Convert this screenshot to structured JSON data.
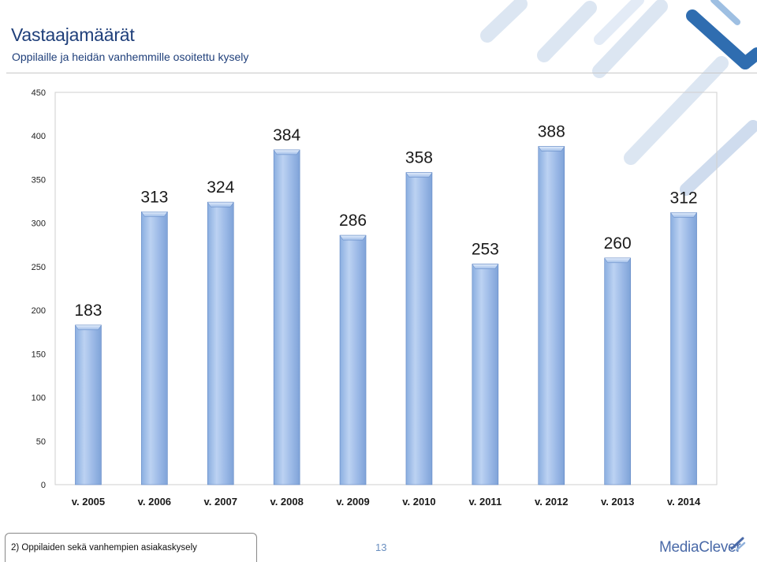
{
  "header": {
    "title": "Vastaajamäärät",
    "subtitle": "Oppilaille ja heidän vanhemmille osoitettu kysely"
  },
  "chart_data": {
    "type": "bar",
    "categories": [
      "v. 2005",
      "v. 2006",
      "v. 2007",
      "v. 2008",
      "v. 2009",
      "v. 2010",
      "v. 2011",
      "v. 2012",
      "v. 2013",
      "v. 2014"
    ],
    "values": [
      183,
      313,
      324,
      384,
      286,
      358,
      253,
      388,
      260,
      312
    ],
    "y_ticks": [
      0,
      50,
      100,
      150,
      200,
      250,
      300,
      350,
      400,
      450
    ],
    "ylim": [
      0,
      450
    ],
    "grid": false,
    "legend": "none",
    "colors": {
      "bar": "#9ab8e6",
      "bar_edge": "#5f86c4",
      "label": "#1a1a1a"
    }
  },
  "footer": {
    "note": "2) Oppilaiden sekä vanhempien asiakaskysely",
    "page_number": "13",
    "logo_text": "MediaClever"
  }
}
